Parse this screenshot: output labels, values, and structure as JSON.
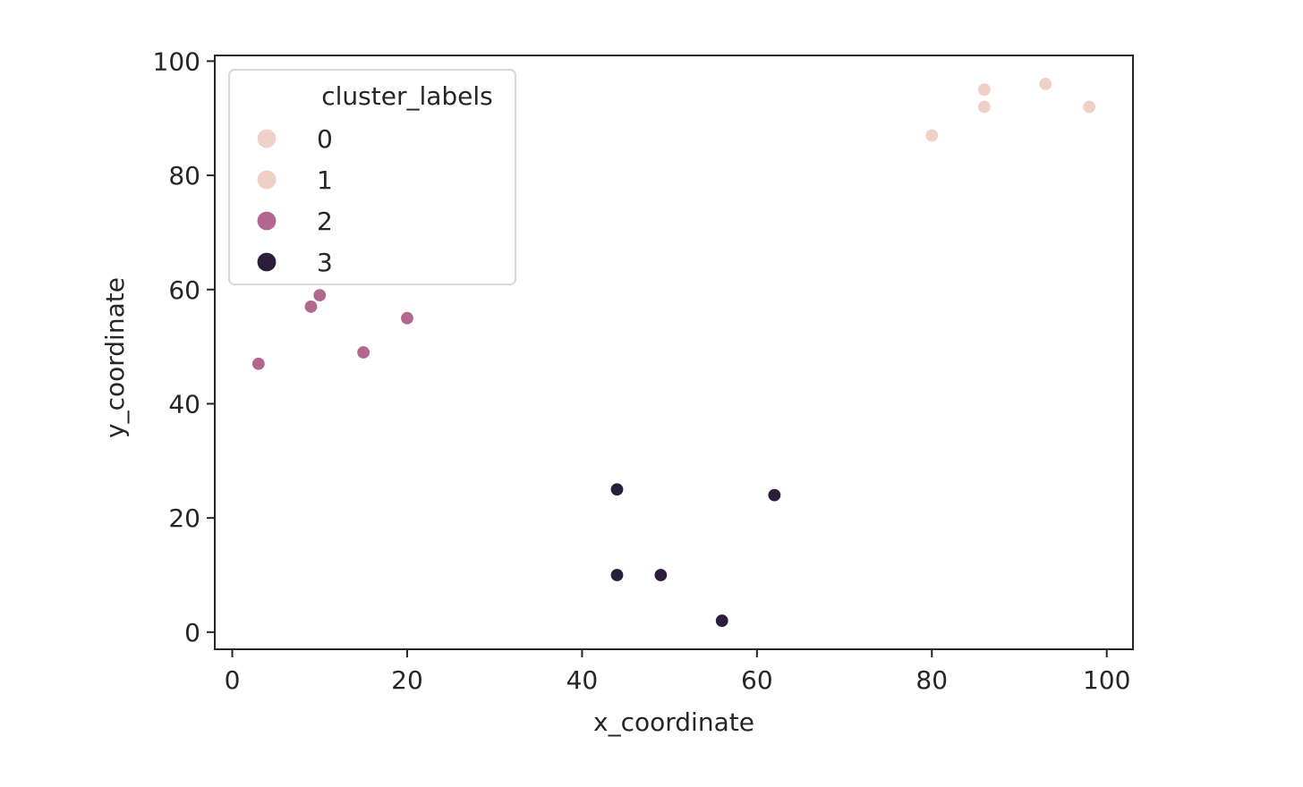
{
  "chart_data": {
    "type": "scatter",
    "xlabel": "x_coordinate",
    "ylabel": "y_coordinate",
    "xlim": [
      -2,
      103
    ],
    "ylim": [
      -3,
      101
    ],
    "x_ticks": [
      0,
      20,
      40,
      60,
      80,
      100
    ],
    "y_ticks": [
      0,
      20,
      40,
      60,
      80,
      100
    ],
    "grid": false,
    "legend": {
      "title": "cluster_labels",
      "placement": "upper-left",
      "entries": [
        {
          "label": "0",
          "color": "#f0d1c9"
        },
        {
          "label": "1",
          "color": "#efcfc6"
        },
        {
          "label": "2",
          "color": "#b2678f"
        },
        {
          "label": "3",
          "color": "#2c1d3d"
        }
      ]
    },
    "series": [
      {
        "name": "0",
        "color": "#f0d1c9",
        "points": []
      },
      {
        "name": "1",
        "color": "#efcfc6",
        "points": [
          {
            "x": 80,
            "y": 87
          },
          {
            "x": 86,
            "y": 92
          },
          {
            "x": 86,
            "y": 95
          },
          {
            "x": 93,
            "y": 96
          },
          {
            "x": 98,
            "y": 92
          }
        ]
      },
      {
        "name": "2",
        "color": "#b2678f",
        "points": [
          {
            "x": 3,
            "y": 47
          },
          {
            "x": 9,
            "y": 57
          },
          {
            "x": 10,
            "y": 59
          },
          {
            "x": 15,
            "y": 49
          },
          {
            "x": 20,
            "y": 55
          }
        ]
      },
      {
        "name": "3",
        "color": "#2c1d3d",
        "points": [
          {
            "x": 44,
            "y": 25
          },
          {
            "x": 44,
            "y": 10
          },
          {
            "x": 49,
            "y": 10
          },
          {
            "x": 56,
            "y": 2
          },
          {
            "x": 62,
            "y": 24
          }
        ]
      }
    ]
  }
}
